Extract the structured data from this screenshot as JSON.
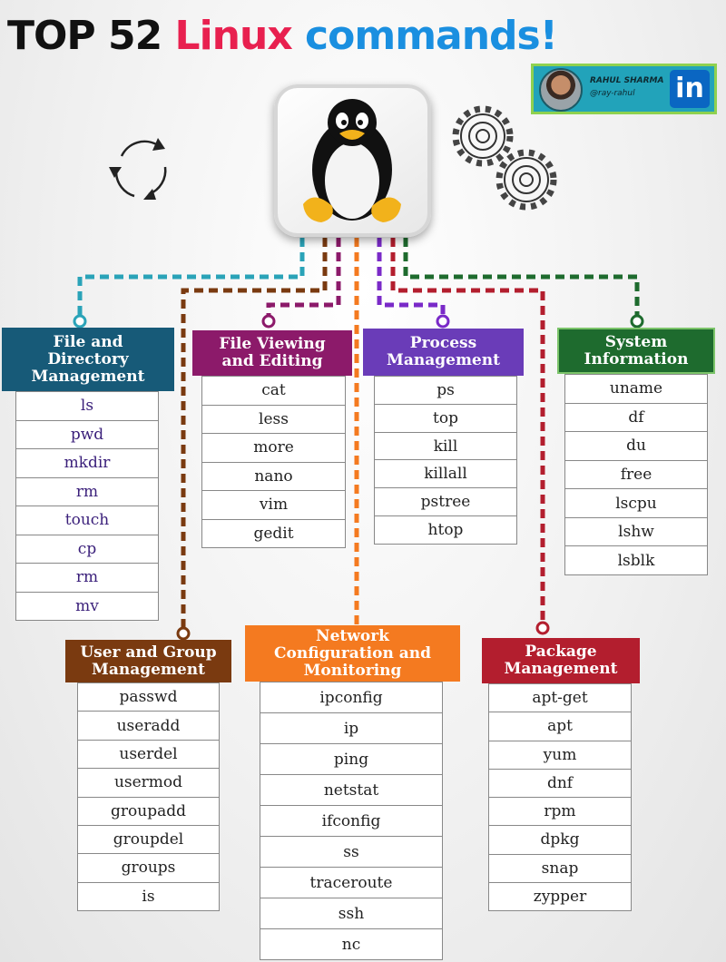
{
  "title": {
    "part1": "TOP 52",
    "part2": "Linux",
    "part3": "commands!"
  },
  "author": {
    "name": "RAHUL SHARMA",
    "handle": "@ray-rahul",
    "icon": "linkedin-icon",
    "icon_text": "in"
  },
  "colors": {
    "file_dir": "#175a78",
    "file_view": "#8c1a6a",
    "process": "#6a3cb8",
    "system": "#1e6b2e",
    "user_group": "#7a3a10",
    "network": "#f47a20",
    "package": "#b31e2e",
    "connector_teal": "#2aa3b8"
  },
  "categories": {
    "file_dir": {
      "title": [
        "File and",
        "Directory",
        "Management"
      ],
      "items": [
        "ls",
        "pwd",
        "mkdir",
        "rm",
        "touch",
        "cp",
        "rm",
        "mv"
      ]
    },
    "file_view": {
      "title": [
        "File Viewing",
        "and Editing"
      ],
      "items": [
        "cat",
        "less",
        "more",
        "nano",
        "vim",
        "gedit"
      ]
    },
    "process": {
      "title": [
        "Process",
        "Management"
      ],
      "items": [
        "ps",
        "top",
        "kill",
        "killall",
        "pstree",
        "htop"
      ]
    },
    "system": {
      "title": [
        "System",
        "Information"
      ],
      "items": [
        "uname",
        "df",
        "du",
        "free",
        "lscpu",
        "lshw",
        "lsblk"
      ]
    },
    "user_group": {
      "title": [
        "User and Group",
        "Management"
      ],
      "items": [
        "passwd",
        "useradd",
        "userdel",
        "usermod",
        "groupadd",
        "groupdel",
        "groups",
        "is"
      ]
    },
    "network": {
      "title": [
        "Network",
        "Configuration and",
        "Monitoring"
      ],
      "items": [
        "ipconfig",
        "ip",
        "ping",
        "netstat",
        "ifconfig",
        "ss",
        "traceroute",
        "ssh",
        "nc"
      ]
    },
    "package": {
      "title": [
        "Package",
        "Management"
      ],
      "items": [
        "apt-get",
        "apt",
        "yum",
        "dnf",
        "rpm",
        "dpkg",
        "snap",
        "zypper"
      ]
    }
  }
}
